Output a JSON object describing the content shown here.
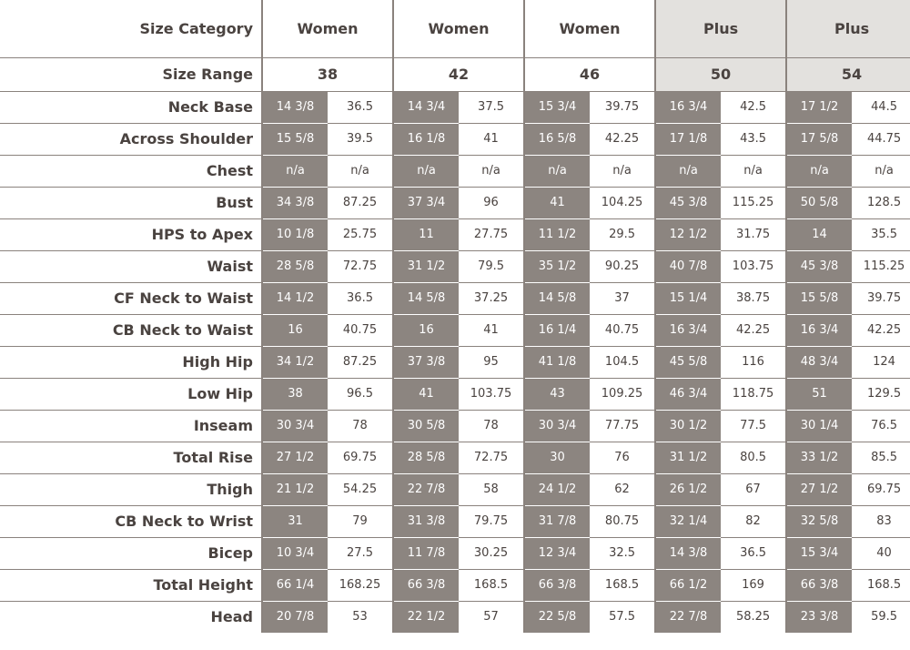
{
  "table": {
    "category_label": "Size Category",
    "range_label": "Size Range",
    "groups": [
      {
        "category": "Women",
        "range": "38"
      },
      {
        "category": "Women",
        "range": "42"
      },
      {
        "category": "Women",
        "range": "46"
      },
      {
        "category": "Plus",
        "range": "50"
      },
      {
        "category": "Plus",
        "range": "54"
      }
    ],
    "rows": [
      {
        "label": "Neck Base",
        "cells": [
          "14 3/8",
          "36.5",
          "14 3/4",
          "37.5",
          "15 3/4",
          "39.75",
          "16 3/4",
          "42.5",
          "17 1/2",
          "44.5"
        ]
      },
      {
        "label": "Across Shoulder",
        "cells": [
          "15 5/8",
          "39.5",
          "16 1/8",
          "41",
          "16 5/8",
          "42.25",
          "17 1/8",
          "43.5",
          "17 5/8",
          "44.75"
        ]
      },
      {
        "label": "Chest",
        "cells": [
          "n/a",
          "n/a",
          "n/a",
          "n/a",
          "n/a",
          "n/a",
          "n/a",
          "n/a",
          "n/a",
          "n/a"
        ]
      },
      {
        "label": "Bust",
        "cells": [
          "34 3/8",
          "87.25",
          "37 3/4",
          "96",
          "41",
          "104.25",
          "45 3/8",
          "115.25",
          "50 5/8",
          "128.5"
        ]
      },
      {
        "label": "HPS to Apex",
        "cells": [
          "10 1/8",
          "25.75",
          "11",
          "27.75",
          "11 1/2",
          "29.5",
          "12 1/2",
          "31.75",
          "14",
          "35.5"
        ]
      },
      {
        "label": "Waist",
        "cells": [
          "28 5/8",
          "72.75",
          "31 1/2",
          "79.5",
          "35 1/2",
          "90.25",
          "40 7/8",
          "103.75",
          "45 3/8",
          "115.25"
        ]
      },
      {
        "label": "CF Neck to Waist",
        "cells": [
          "14 1/2",
          "36.5",
          "14 5/8",
          "37.25",
          "14 5/8",
          "37",
          "15 1/4",
          "38.75",
          "15 5/8",
          "39.75"
        ]
      },
      {
        "label": "CB Neck to Waist",
        "cells": [
          "16",
          "40.75",
          "16",
          "41",
          "16 1/4",
          "40.75",
          "16 3/4",
          "42.25",
          "16 3/4",
          "42.25"
        ]
      },
      {
        "label": "High Hip",
        "cells": [
          "34 1/2",
          "87.25",
          "37 3/8",
          "95",
          "41 1/8",
          "104.5",
          "45 5/8",
          "116",
          "48 3/4",
          "124"
        ]
      },
      {
        "label": "Low Hip",
        "cells": [
          "38",
          "96.5",
          "41",
          "103.75",
          "43",
          "109.25",
          "46 3/4",
          "118.75",
          "51",
          "129.5"
        ]
      },
      {
        "label": "Inseam",
        "cells": [
          "30 3/4",
          "78",
          "30 5/8",
          "78",
          "30 3/4",
          "77.75",
          "30 1/2",
          "77.5",
          "30 1/4",
          "76.5"
        ]
      },
      {
        "label": "Total Rise",
        "cells": [
          "27 1/2",
          "69.75",
          "28 5/8",
          "72.75",
          "30",
          "76",
          "31 1/2",
          "80.5",
          "33 1/2",
          "85.5"
        ]
      },
      {
        "label": "Thigh",
        "cells": [
          "21 1/2",
          "54.25",
          "22 7/8",
          "58",
          "24 1/2",
          "62",
          "26 1/2",
          "67",
          "27 1/2",
          "69.75"
        ]
      },
      {
        "label": "CB Neck to Wrist",
        "cells": [
          "31",
          "79",
          "31 3/8",
          "79.75",
          "31 7/8",
          "80.75",
          "32 1/4",
          "82",
          "32 5/8",
          "83"
        ]
      },
      {
        "label": "Bicep",
        "cells": [
          "10 3/4",
          "27.5",
          "11 7/8",
          "30.25",
          "12 3/4",
          "32.5",
          "14 3/8",
          "36.5",
          "15 3/4",
          "40"
        ]
      },
      {
        "label": "Total Height",
        "cells": [
          "66 1/4",
          "168.25",
          "66 3/8",
          "168.5",
          "66 3/8",
          "168.5",
          "66 1/2",
          "169",
          "66 3/8",
          "168.5"
        ]
      },
      {
        "label": "Head",
        "cells": [
          "20 7/8",
          "53",
          "22 1/2",
          "57",
          "22 5/8",
          "57.5",
          "22 7/8",
          "58.25",
          "23 3/8",
          "59.5"
        ]
      }
    ]
  },
  "colors": {
    "text": "#4a4340",
    "inch_cell_bg": "#8c8580",
    "plus_header_bg": "#e3e1de",
    "rule": "#8a827d"
  }
}
